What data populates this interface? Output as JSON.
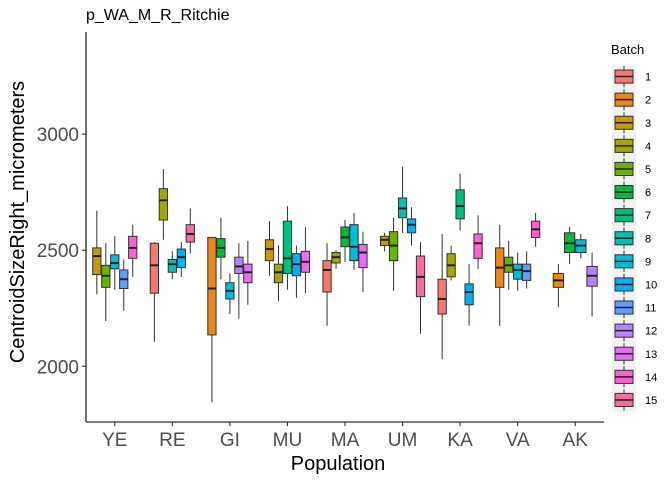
{
  "chart_data": {
    "type": "boxplot",
    "title": "p_WA_M_R_Ritchie",
    "xlabel": "Population",
    "ylabel": "CentroidSizeRight_micrometers",
    "ylim": [
      1760,
      3440
    ],
    "yticks": [
      2000,
      2500,
      3000
    ],
    "grid": false,
    "legend_title": "Batch",
    "legend_position": "right",
    "categories": [
      "YE",
      "RE",
      "GI",
      "MU",
      "MA",
      "UM",
      "KA",
      "VA",
      "AK"
    ],
    "series": [
      {
        "name": "1",
        "color": "#F8766D"
      },
      {
        "name": "2",
        "color": "#E7861B"
      },
      {
        "name": "3",
        "color": "#C99800"
      },
      {
        "name": "4",
        "color": "#A3A500"
      },
      {
        "name": "5",
        "color": "#6BB100"
      },
      {
        "name": "6",
        "color": "#00BA38"
      },
      {
        "name": "7",
        "color": "#00BF7D"
      },
      {
        "name": "8",
        "color": "#00C0AF"
      },
      {
        "name": "9",
        "color": "#00BCD8"
      },
      {
        "name": "10",
        "color": "#00B0F6"
      },
      {
        "name": "11",
        "color": "#619CFF"
      },
      {
        "name": "12",
        "color": "#B983FF"
      },
      {
        "name": "13",
        "color": "#E76BF3"
      },
      {
        "name": "14",
        "color": "#FD61D1"
      },
      {
        "name": "15",
        "color": "#FF67A4"
      }
    ],
    "boxes": [
      {
        "category": "YE",
        "batch": "3",
        "whisker_low": 2310,
        "q1": 2395,
        "median": 2475,
        "q3": 2510,
        "whisker_high": 2670
      },
      {
        "category": "YE",
        "batch": "5",
        "whisker_low": 2195,
        "q1": 2340,
        "median": 2390,
        "q3": 2435,
        "whisker_high": 2530
      },
      {
        "category": "YE",
        "batch": "9",
        "whisker_low": 2330,
        "q1": 2420,
        "median": 2445,
        "q3": 2480,
        "whisker_high": 2560
      },
      {
        "category": "YE",
        "batch": "11",
        "whisker_low": 2240,
        "q1": 2335,
        "median": 2375,
        "q3": 2415,
        "whisker_high": 2460
      },
      {
        "category": "YE",
        "batch": "14",
        "whisker_low": 2385,
        "q1": 2465,
        "median": 2510,
        "q3": 2560,
        "whisker_high": 2610
      },
      {
        "category": "RE",
        "batch": "1",
        "whisker_low": 2105,
        "q1": 2315,
        "median": 2435,
        "q3": 2530,
        "whisker_high": 2535
      },
      {
        "category": "RE",
        "batch": "4",
        "whisker_low": 2545,
        "q1": 2630,
        "median": 2715,
        "q3": 2765,
        "whisker_high": 2850
      },
      {
        "category": "RE",
        "batch": "8",
        "whisker_low": 2375,
        "q1": 2405,
        "median": 2440,
        "q3": 2460,
        "whisker_high": 2495
      },
      {
        "category": "RE",
        "batch": "10",
        "whisker_low": 2385,
        "q1": 2425,
        "median": 2470,
        "q3": 2505,
        "whisker_high": 2535
      },
      {
        "category": "RE",
        "batch": "15",
        "whisker_low": 2485,
        "q1": 2535,
        "median": 2570,
        "q3": 2610,
        "whisker_high": 2680
      },
      {
        "category": "GI",
        "batch": "2",
        "whisker_low": 1845,
        "q1": 2135,
        "median": 2335,
        "q3": 2555,
        "whisker_high": 2555
      },
      {
        "category": "GI",
        "batch": "6",
        "whisker_low": 2375,
        "q1": 2470,
        "median": 2510,
        "q3": 2550,
        "whisker_high": 2640
      },
      {
        "category": "GI",
        "batch": "9",
        "whisker_low": 2225,
        "q1": 2290,
        "median": 2325,
        "q3": 2360,
        "whisker_high": 2400
      },
      {
        "category": "GI",
        "batch": "12",
        "whisker_low": 2205,
        "q1": 2400,
        "median": 2430,
        "q3": 2470,
        "whisker_high": 2530
      },
      {
        "category": "GI",
        "batch": "13",
        "whisker_low": 2265,
        "q1": 2360,
        "median": 2405,
        "q3": 2440,
        "whisker_high": 2540
      },
      {
        "category": "MU",
        "batch": "3",
        "whisker_low": 2390,
        "q1": 2455,
        "median": 2505,
        "q3": 2545,
        "whisker_high": 2625
      },
      {
        "category": "MU",
        "batch": "4",
        "whisker_low": 2280,
        "q1": 2360,
        "median": 2405,
        "q3": 2440,
        "whisker_high": 2520
      },
      {
        "category": "MU",
        "batch": "7",
        "whisker_low": 2330,
        "q1": 2400,
        "median": 2465,
        "q3": 2625,
        "whisker_high": 2690
      },
      {
        "category": "MU",
        "batch": "10",
        "whisker_low": 2295,
        "q1": 2390,
        "median": 2440,
        "q3": 2485,
        "whisker_high": 2520
      },
      {
        "category": "MU",
        "batch": "13",
        "whisker_low": 2315,
        "q1": 2405,
        "median": 2450,
        "q3": 2495,
        "whisker_high": 2600
      },
      {
        "category": "MA",
        "batch": "1",
        "whisker_low": 2175,
        "q1": 2320,
        "median": 2415,
        "q3": 2455,
        "whisker_high": 2530
      },
      {
        "category": "MA",
        "batch": "4",
        "whisker_low": 2420,
        "q1": 2445,
        "median": 2470,
        "q3": 2490,
        "whisker_high": 2500
      },
      {
        "category": "MA",
        "batch": "6",
        "whisker_low": 2450,
        "q1": 2515,
        "median": 2555,
        "q3": 2600,
        "whisker_high": 2630
      },
      {
        "category": "MA",
        "batch": "9",
        "whisker_low": 2415,
        "q1": 2455,
        "median": 2515,
        "q3": 2610,
        "whisker_high": 2660
      },
      {
        "category": "MA",
        "batch": "13",
        "whisker_low": 2320,
        "q1": 2425,
        "median": 2490,
        "q3": 2525,
        "whisker_high": 2580
      },
      {
        "category": "UM",
        "batch": "3",
        "whisker_low": 2495,
        "q1": 2520,
        "median": 2545,
        "q3": 2560,
        "whisker_high": 2575
      },
      {
        "category": "UM",
        "batch": "5",
        "whisker_low": 2325,
        "q1": 2455,
        "median": 2520,
        "q3": 2580,
        "whisker_high": 2640
      },
      {
        "category": "UM",
        "batch": "8",
        "whisker_low": 2575,
        "q1": 2640,
        "median": 2680,
        "q3": 2725,
        "whisker_high": 2860
      },
      {
        "category": "UM",
        "batch": "10",
        "whisker_low": 2520,
        "q1": 2575,
        "median": 2610,
        "q3": 2635,
        "whisker_high": 2685
      },
      {
        "category": "UM",
        "batch": "15",
        "whisker_low": 2140,
        "q1": 2300,
        "median": 2385,
        "q3": 2475,
        "whisker_high": 2535
      },
      {
        "category": "KA",
        "batch": "1",
        "whisker_low": 2030,
        "q1": 2225,
        "median": 2290,
        "q3": 2375,
        "whisker_high": 2570
      },
      {
        "category": "KA",
        "batch": "4",
        "whisker_low": 2370,
        "q1": 2385,
        "median": 2435,
        "q3": 2485,
        "whisker_high": 2520
      },
      {
        "category": "KA",
        "batch": "7",
        "whisker_low": 2585,
        "q1": 2635,
        "median": 2690,
        "q3": 2760,
        "whisker_high": 2830
      },
      {
        "category": "KA",
        "batch": "10",
        "whisker_low": 2175,
        "q1": 2265,
        "median": 2320,
        "q3": 2355,
        "whisker_high": 2440
      },
      {
        "category": "KA",
        "batch": "14",
        "whisker_low": 2420,
        "q1": 2465,
        "median": 2530,
        "q3": 2570,
        "whisker_high": 2650
      },
      {
        "category": "VA",
        "batch": "2",
        "whisker_low": 2175,
        "q1": 2340,
        "median": 2425,
        "q3": 2510,
        "whisker_high": 2610
      },
      {
        "category": "VA",
        "batch": "5",
        "whisker_low": 2330,
        "q1": 2405,
        "median": 2435,
        "q3": 2470,
        "whisker_high": 2540
      },
      {
        "category": "VA",
        "batch": "9",
        "whisker_low": 2325,
        "q1": 2375,
        "median": 2415,
        "q3": 2440,
        "whisker_high": 2490
      },
      {
        "category": "VA",
        "batch": "11",
        "whisker_low": 2335,
        "q1": 2370,
        "median": 2410,
        "q3": 2440,
        "whisker_high": 2495
      },
      {
        "category": "VA",
        "batch": "14",
        "whisker_low": 2515,
        "q1": 2555,
        "median": 2590,
        "q3": 2625,
        "whisker_high": 2660
      },
      {
        "category": "AK",
        "batch": "2",
        "whisker_low": 2255,
        "q1": 2340,
        "median": 2370,
        "q3": 2400,
        "whisker_high": 2440
      },
      {
        "category": "AK",
        "batch": "6",
        "whisker_low": 2440,
        "q1": 2490,
        "median": 2530,
        "q3": 2575,
        "whisker_high": 2600
      },
      {
        "category": "AK",
        "batch": "9",
        "whisker_low": 2465,
        "q1": 2490,
        "median": 2520,
        "q3": 2545,
        "whisker_high": 2570
      },
      {
        "category": "AK",
        "batch": "12",
        "whisker_low": 2215,
        "q1": 2345,
        "median": 2390,
        "q3": 2430,
        "whisker_high": 2490
      }
    ]
  }
}
